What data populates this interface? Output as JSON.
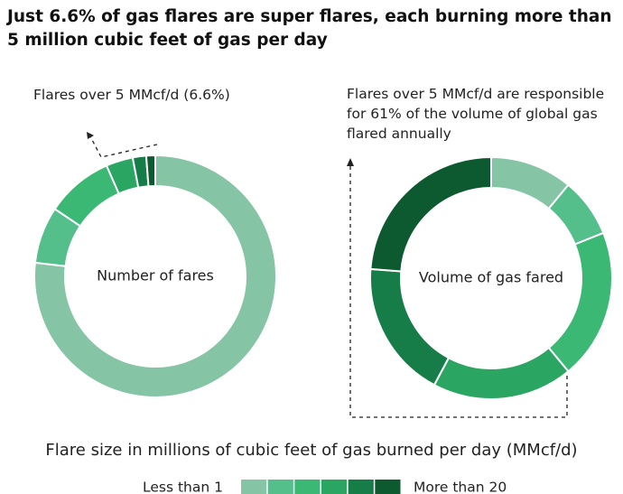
{
  "title": "Just 6.6% of gas flares are super flares, each burning more than 5 million cubic feet of gas per day",
  "legend": {
    "title": "Flare size in millions of cubic feet of gas burned per day (MMcf/d)",
    "low_label": "Less than 1",
    "high_label": "More than 20",
    "colors": [
      "#85c4a4",
      "#55bf8c",
      "#3bb873",
      "#2aa562",
      "#177d48",
      "#0d5a31"
    ]
  },
  "chart_data": [
    {
      "type": "pie",
      "center_label": "Number of fares",
      "annotation": "Flares over 5 MMcf/d (6.6%)",
      "values": [
        76.8,
        7.6,
        9.0,
        3.6,
        1.8,
        1.2
      ]
    },
    {
      "type": "pie",
      "center_label": "Volume of gas fared",
      "annotation": "Flares over 5 MMcf/d are responsible for 61% of the volume of global gas flared annually",
      "values": [
        11.0,
        7.9,
        20.1,
        18.8,
        18.4,
        23.8
      ]
    }
  ]
}
